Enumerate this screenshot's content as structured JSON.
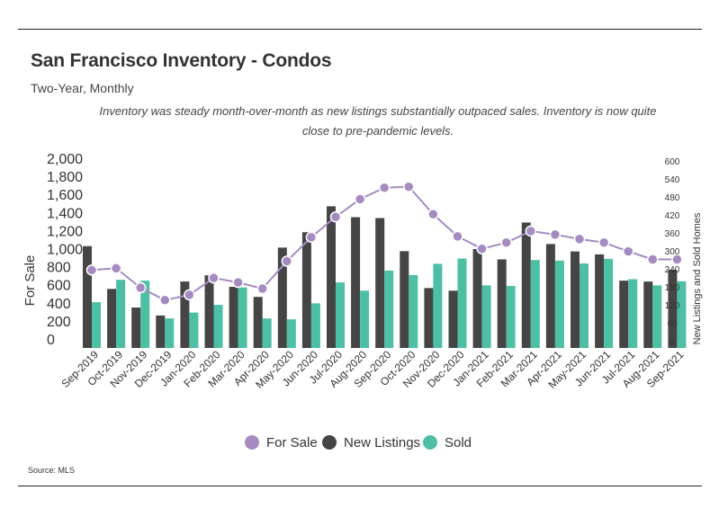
{
  "title": "San Francisco Inventory - Condos",
  "subtitle": "Two-Year, Monthly",
  "annotation_lines": [
    "Inventory was steady month-over-month as new listings substantially outpaced sales. Inventory is now quite",
    "close to pre-pandemic levels."
  ],
  "source": "Source:  MLS",
  "colors": {
    "for_sale": "#a58bc0",
    "new_listings": "#454545",
    "sold": "#4dbfa5"
  },
  "chart_data": {
    "type": "bar",
    "categories": [
      "Sep-2019",
      "Oct-2019",
      "Nov-2019",
      "Dec-2019",
      "Jan-2020",
      "Feb-2020",
      "Mar-2020",
      "Apr-2020",
      "May-2020",
      "Jun-2020",
      "Jul-2020",
      "Aug-2020",
      "Sep-2020",
      "Oct-2020",
      "Nov-2020",
      "Dec-2020",
      "Jan-2021",
      "Feb-2021",
      "Mar-2021",
      "Apr-2021",
      "May-2021",
      "Jun-2021",
      "Jul-2021",
      "Aug-2021",
      "Sep-2021"
    ],
    "series": [
      {
        "name": "For Sale",
        "kind": "line",
        "axis": "left",
        "values": [
          880,
          900,
          680,
          540,
          600,
          790,
          740,
          670,
          980,
          1250,
          1480,
          1680,
          1810,
          1820,
          1510,
          1260,
          1120,
          1190,
          1320,
          1280,
          1230,
          1190,
          1090,
          1000,
          1000
        ]
      },
      {
        "name": "New Listings",
        "kind": "bar",
        "axis": "right",
        "values": [
          345,
          200,
          137,
          110,
          225,
          246,
          207,
          173,
          340,
          392,
          480,
          443,
          440,
          328,
          203,
          194,
          335,
          300,
          425,
          352,
          327,
          317,
          228,
          225,
          265
        ]
      },
      {
        "name": "Sold",
        "kind": "bar",
        "axis": "right",
        "values": [
          155,
          231,
          228,
          100,
          120,
          146,
          205,
          100,
          97,
          151,
          222,
          194,
          262,
          247,
          285,
          303,
          212,
          210,
          298,
          296,
          286,
          302,
          233,
          212,
          226
        ]
      }
    ],
    "left_axis": {
      "label": "For Sale",
      "ticks": [
        "2,000",
        "1,800",
        "1,600",
        "1,400",
        "1,200",
        "1,000",
        "800",
        "600",
        "400",
        "200",
        "0"
      ],
      "ylim": [
        0,
        2000
      ]
    },
    "right_axis": {
      "label": "New Listings and Sold Homes",
      "ticks": [
        "600",
        "540",
        "480",
        "420",
        "360",
        "300",
        "240",
        "180",
        "120",
        "60",
        "0"
      ],
      "ylim": [
        0,
        600
      ]
    },
    "legend": {
      "placement": "bottom-center",
      "entries": [
        "For Sale",
        "New Listings",
        "Sold"
      ]
    },
    "grid": false
  }
}
